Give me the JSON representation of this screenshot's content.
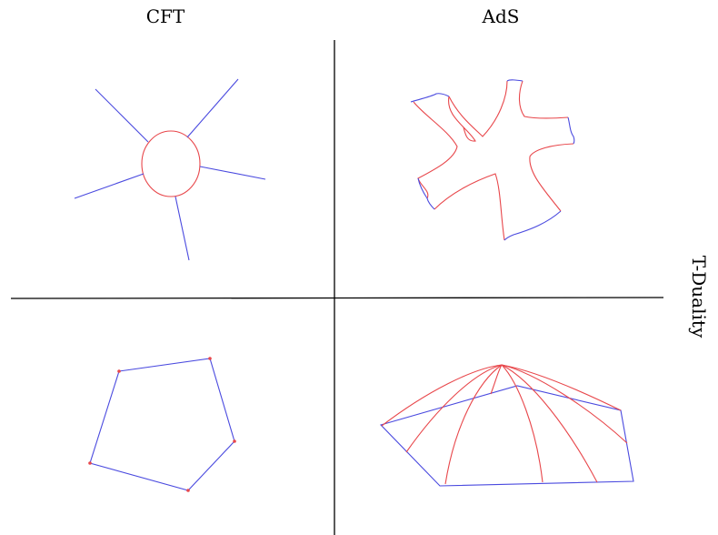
{
  "labels": {
    "cft": "CFT",
    "ads": "AdS",
    "t_duality": "T-Duality"
  },
  "colors": {
    "blue": "#4a4adf",
    "red": "#e8474b",
    "axis": "#000000"
  }
}
